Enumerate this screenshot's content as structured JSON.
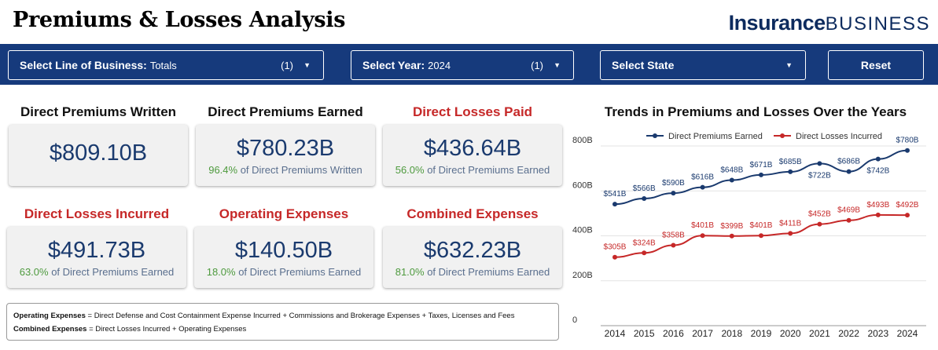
{
  "header": {
    "title": "Premiums & Losses Analysis",
    "brand_bold": "Insurance",
    "brand_light": "BUSINESS"
  },
  "filters": {
    "line_of_business": {
      "label": "Select Line of Business:",
      "value": "Totals",
      "count": "(1)"
    },
    "year": {
      "label": "Select Year:",
      "value": "2024",
      "count": "(1)"
    },
    "state": {
      "label": "Select State"
    },
    "reset_label": "Reset"
  },
  "kpis": [
    {
      "heading": "Direct Premiums Written",
      "value": "$809.10B"
    },
    {
      "heading": "Direct Premiums Earned",
      "value": "$780.23B",
      "pct": "96.4%",
      "sub": " of Direct Premiums Written"
    },
    {
      "heading": "Direct Losses Paid",
      "value": "$436.64B",
      "pct": "56.0%",
      "sub": " of Direct Premiums Earned"
    },
    {
      "heading": "Direct Losses Incurred",
      "value": "$491.73B",
      "pct": "63.0%",
      "sub": " of Direct Premiums Earned"
    },
    {
      "heading": "Operating Expenses",
      "value": "$140.50B",
      "pct": "18.0%",
      "sub": " of Direct Premiums Earned"
    },
    {
      "heading": "Combined Expenses",
      "value": "$632.23B",
      "pct": "81.0%",
      "sub": " of Direct Premiums Earned"
    }
  ],
  "footnote": {
    "op_label": "Operating Expenses",
    "op_def": " = Direct Defense and Cost Containment Expense Incurred + Commissions and Brokerage Expenses + Taxes, Licenses and Fees",
    "comb_label": "Combined Expenses",
    "comb_def": " = Direct Losses Incurred + Operating Expenses"
  },
  "colors": {
    "navy": "#163a7c",
    "accent_red": "#c62828",
    "earned_line": "#1a3a6e",
    "losses_line": "#c62828"
  },
  "chart_data": {
    "type": "line",
    "title": "Trends in Premiums and Losses Over the Years",
    "x": [
      "2014",
      "2015",
      "2016",
      "2017",
      "2018",
      "2019",
      "2020",
      "2021",
      "2022",
      "2023",
      "2024"
    ],
    "y_ticks": [
      "0",
      "200B",
      "400B",
      "600B",
      "800B"
    ],
    "ylim": [
      0,
      800
    ],
    "legend_position": "top",
    "grid": true,
    "series": [
      {
        "name": "Direct Premiums Earned",
        "color": "#1a3a6e",
        "values": [
          541,
          566,
          590,
          616,
          648,
          671,
          685,
          722,
          686,
          742,
          780
        ],
        "labels": [
          "$541B",
          "$566B",
          "$590B",
          "$616B",
          "$648B",
          "$671B",
          "$685B",
          "$722B",
          "$686B",
          "$742B",
          "$780B"
        ]
      },
      {
        "name": "Direct Losses Incurred",
        "color": "#c62828",
        "values": [
          305,
          324,
          358,
          401,
          399,
          401,
          411,
          452,
          469,
          493,
          492
        ],
        "labels": [
          "$305B",
          "$324B",
          "$358B",
          "$401B",
          "$399B",
          "$401B",
          "$411B",
          "$452B",
          "$469B",
          "$493B",
          "$492B"
        ]
      }
    ]
  }
}
